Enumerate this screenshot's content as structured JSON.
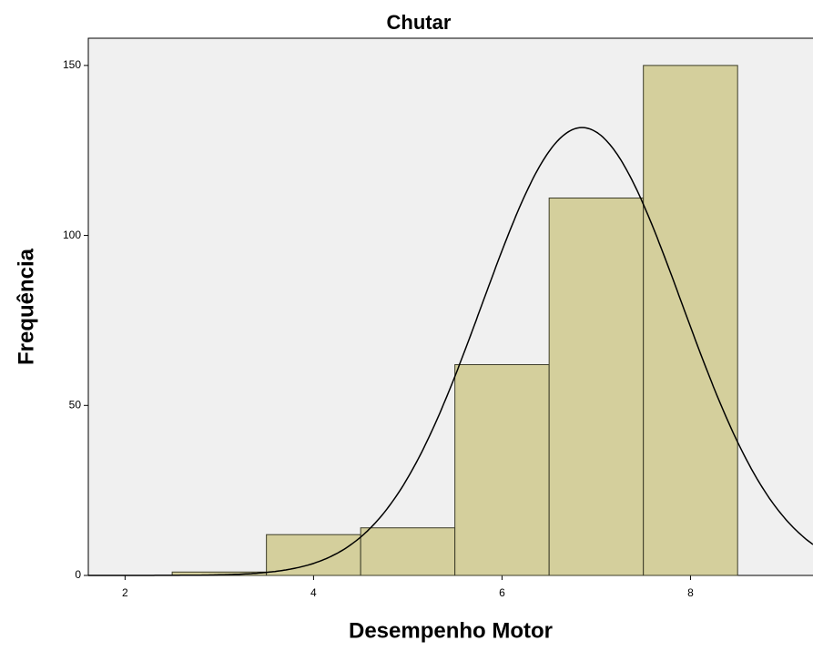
{
  "chart_data": {
    "type": "histogram",
    "title": "Chutar",
    "x_label": "Desempenho Motor",
    "y_label": "Frequência",
    "bins": [
      2.5,
      3.5,
      4.5,
      5.5,
      6.5,
      7.5,
      8.5
    ],
    "counts": [
      1,
      12,
      14,
      62,
      111,
      150
    ],
    "color": "#d4cf9c",
    "edge_color": "#3c3c28",
    "background": "#f0f0f0",
    "curve": {
      "mean": 6.85,
      "sd": 1.06,
      "color": "#000000"
    },
    "xlim": [
      1.61,
      9.3
    ],
    "ylim": [
      0,
      158
    ],
    "xticks": [
      2,
      4,
      6,
      8
    ],
    "yticks": [
      0,
      50,
      100,
      150
    ]
  }
}
